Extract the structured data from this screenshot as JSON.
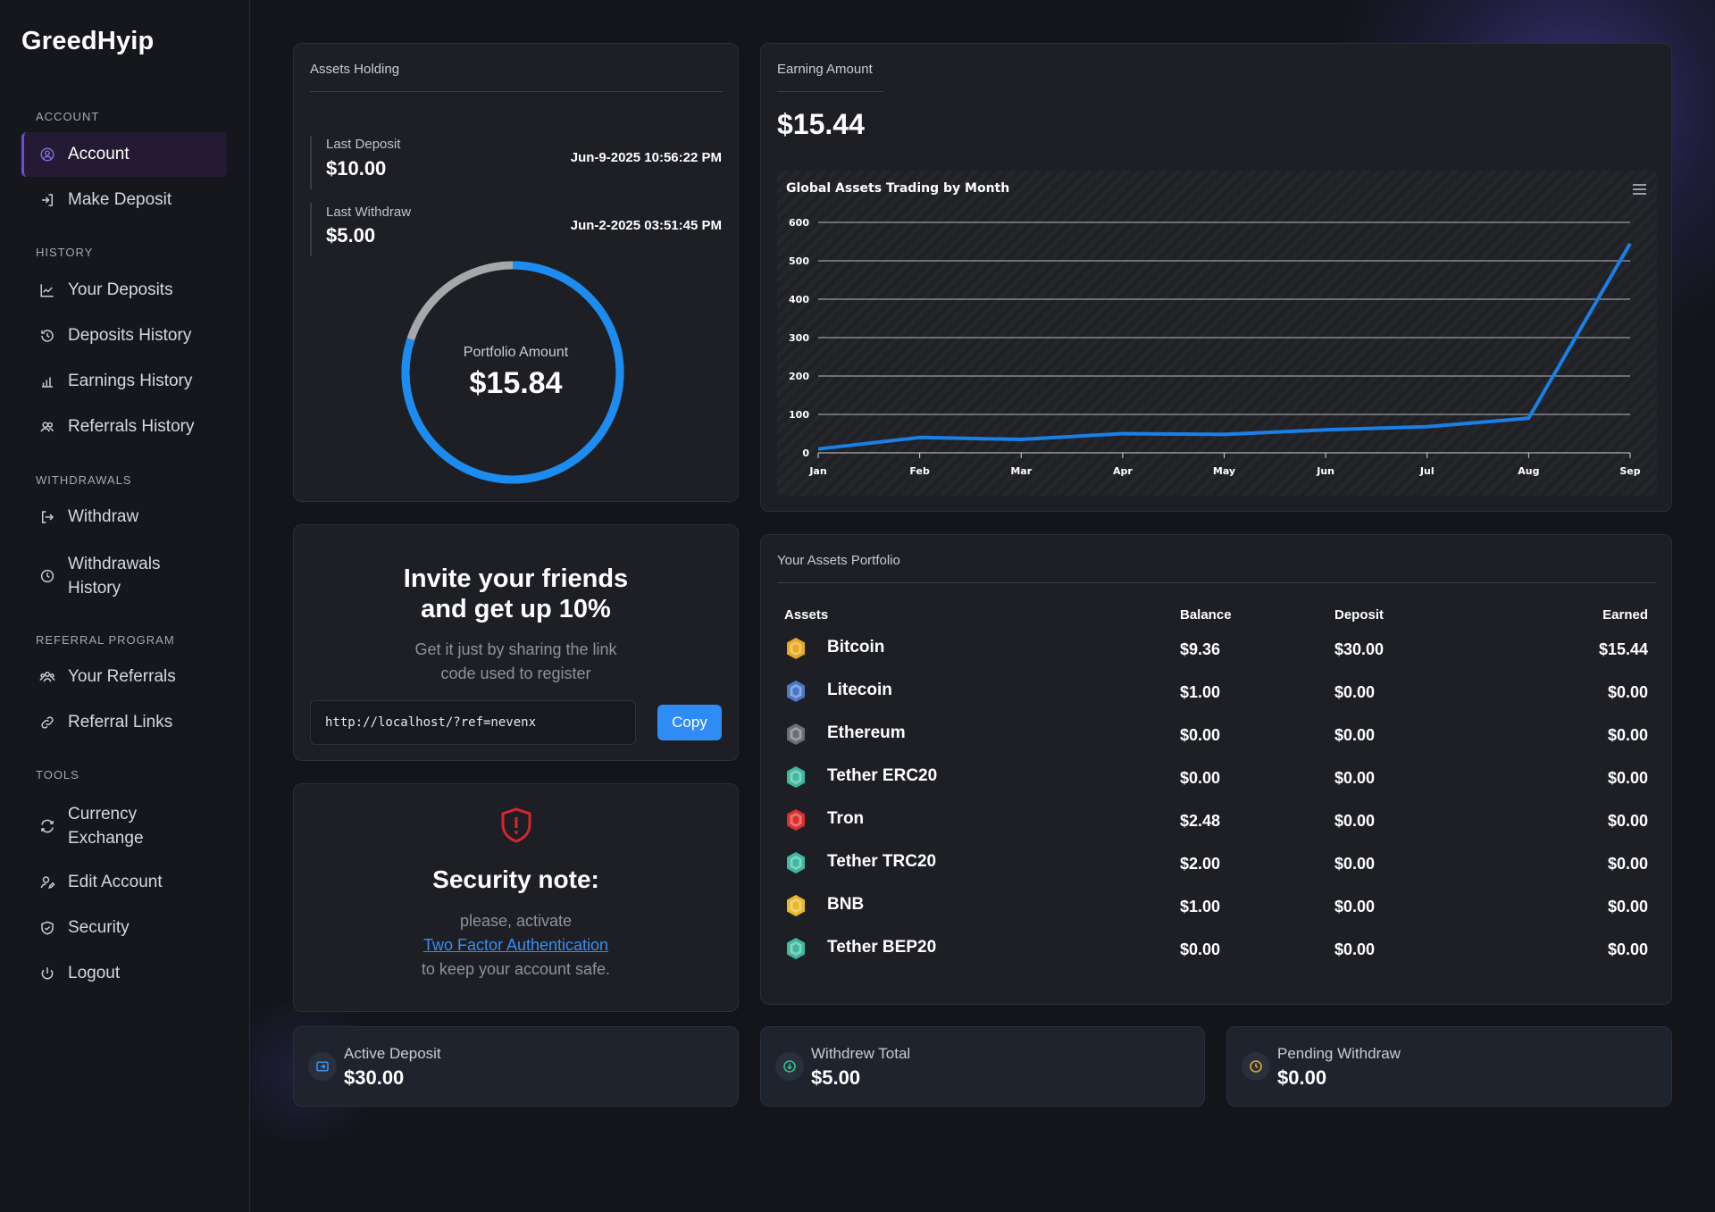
{
  "app": {
    "logo": "GreedHyip"
  },
  "sidebar": {
    "sections": [
      {
        "title": "ACCOUNT"
      },
      {
        "title": "HISTORY"
      },
      {
        "title": "WITHDRAWALS"
      },
      {
        "title": "REFERRAL PROGRAM"
      },
      {
        "title": "TOOLS"
      }
    ],
    "items": [
      {
        "label": "Account",
        "icon": "user-circle-icon"
      },
      {
        "label": "Make Deposit",
        "icon": "login-icon"
      },
      {
        "label": "Your Deposits",
        "icon": "trend-chart-icon"
      },
      {
        "label": "Deposits History",
        "icon": "history-icon"
      },
      {
        "label": "Earnings History",
        "icon": "bar-chart-icon"
      },
      {
        "label": "Referrals History",
        "icon": "users-icon"
      },
      {
        "label": "Withdraw",
        "icon": "logout-icon"
      },
      {
        "label": "Withdrawals",
        "label2": "History",
        "icon": "clock-icon"
      },
      {
        "label": "Your Referrals",
        "icon": "group-icon"
      },
      {
        "label": "Referral Links",
        "icon": "link-icon"
      },
      {
        "label": "Currency",
        "label2": "Exchange",
        "icon": "exchange-icon"
      },
      {
        "label": "Edit Account",
        "icon": "user-edit-icon"
      },
      {
        "label": "Security",
        "icon": "shield-icon"
      },
      {
        "label": "Logout",
        "icon": "power-icon"
      }
    ]
  },
  "assets_holding": {
    "title": "Assets Holding",
    "last_deposit": {
      "label": "Last Deposit",
      "amount": "$10.00",
      "date": "Jun-9-2025 10:56:22 PM"
    },
    "last_withdraw": {
      "label": "Last Withdraw",
      "amount": "$5.00",
      "date": "Jun-2-2025 03:51:45 PM"
    },
    "portfolio": {
      "label": "Portfolio Amount",
      "amount": "$15.84",
      "blue_fraction": 0.8
    }
  },
  "invite": {
    "title_line1": "Invite your friends",
    "title_line2": "and get up 10%",
    "sub_line1": "Get it just by sharing the link",
    "sub_line2": "code used to register",
    "ref_link": "http://localhost/?ref=nevenx",
    "copy_label": "Copy"
  },
  "security": {
    "title": "Security note:",
    "line1": "please, activate",
    "link": "Two Factor Authentication",
    "line2": "to keep your account safe."
  },
  "earning": {
    "title": "Earning Amount",
    "amount": "$15.44"
  },
  "chart_data": {
    "type": "line",
    "title": "Global Assets Trading by Month",
    "categories": [
      "Jan",
      "Feb",
      "Mar",
      "Apr",
      "May",
      "Jun",
      "Jul",
      "Aug",
      "Sep"
    ],
    "series": [
      {
        "values": [
          10,
          40,
          35,
          50,
          48,
          60,
          68,
          90,
          545
        ]
      }
    ],
    "yticks": [
      0,
      100,
      200,
      300,
      400,
      500,
      600
    ],
    "ylim": [
      0,
      600
    ],
    "grid": true,
    "color": "#1a7fe6"
  },
  "portfolio_table": {
    "title": "Your Assets Portfolio",
    "headers": [
      "Assets",
      "Balance",
      "Deposit",
      "Earned"
    ],
    "rows": [
      {
        "name": "Bitcoin",
        "balance": "$9.36",
        "deposit": "$30.00",
        "earned": "$15.44",
        "color": "#e8a921"
      },
      {
        "name": "Litecoin",
        "balance": "$1.00",
        "deposit": "$0.00",
        "earned": "$0.00",
        "color": "#4a78c9"
      },
      {
        "name": "Ethereum",
        "balance": "$0.00",
        "deposit": "$0.00",
        "earned": "$0.00",
        "color": "#6b6e75"
      },
      {
        "name": "Tether ERC20",
        "balance": "$0.00",
        "deposit": "$0.00",
        "earned": "$0.00",
        "color": "#3fb8a0"
      },
      {
        "name": "Tron",
        "balance": "$2.48",
        "deposit": "$0.00",
        "earned": "$0.00",
        "color": "#d9302f"
      },
      {
        "name": "Tether TRC20",
        "balance": "$2.00",
        "deposit": "$0.00",
        "earned": "$0.00",
        "color": "#3fb8a0"
      },
      {
        "name": "BNB",
        "balance": "$1.00",
        "deposit": "$0.00",
        "earned": "$0.00",
        "color": "#e8b92a"
      },
      {
        "name": "Tether BEP20",
        "balance": "$0.00",
        "deposit": "$0.00",
        "earned": "$0.00",
        "color": "#3fb8a0"
      }
    ]
  },
  "stats": [
    {
      "label": "Active Deposit",
      "value": "$30.00",
      "icon": "deposit-icon",
      "color": "#3b8ef0"
    },
    {
      "label": "Withdrew Total",
      "value": "$5.00",
      "icon": "withdraw-icon",
      "color": "#2fc08a"
    },
    {
      "label": "Pending Withdraw",
      "value": "$0.00",
      "icon": "pending-clock-icon",
      "color": "#e0a93a"
    }
  ]
}
